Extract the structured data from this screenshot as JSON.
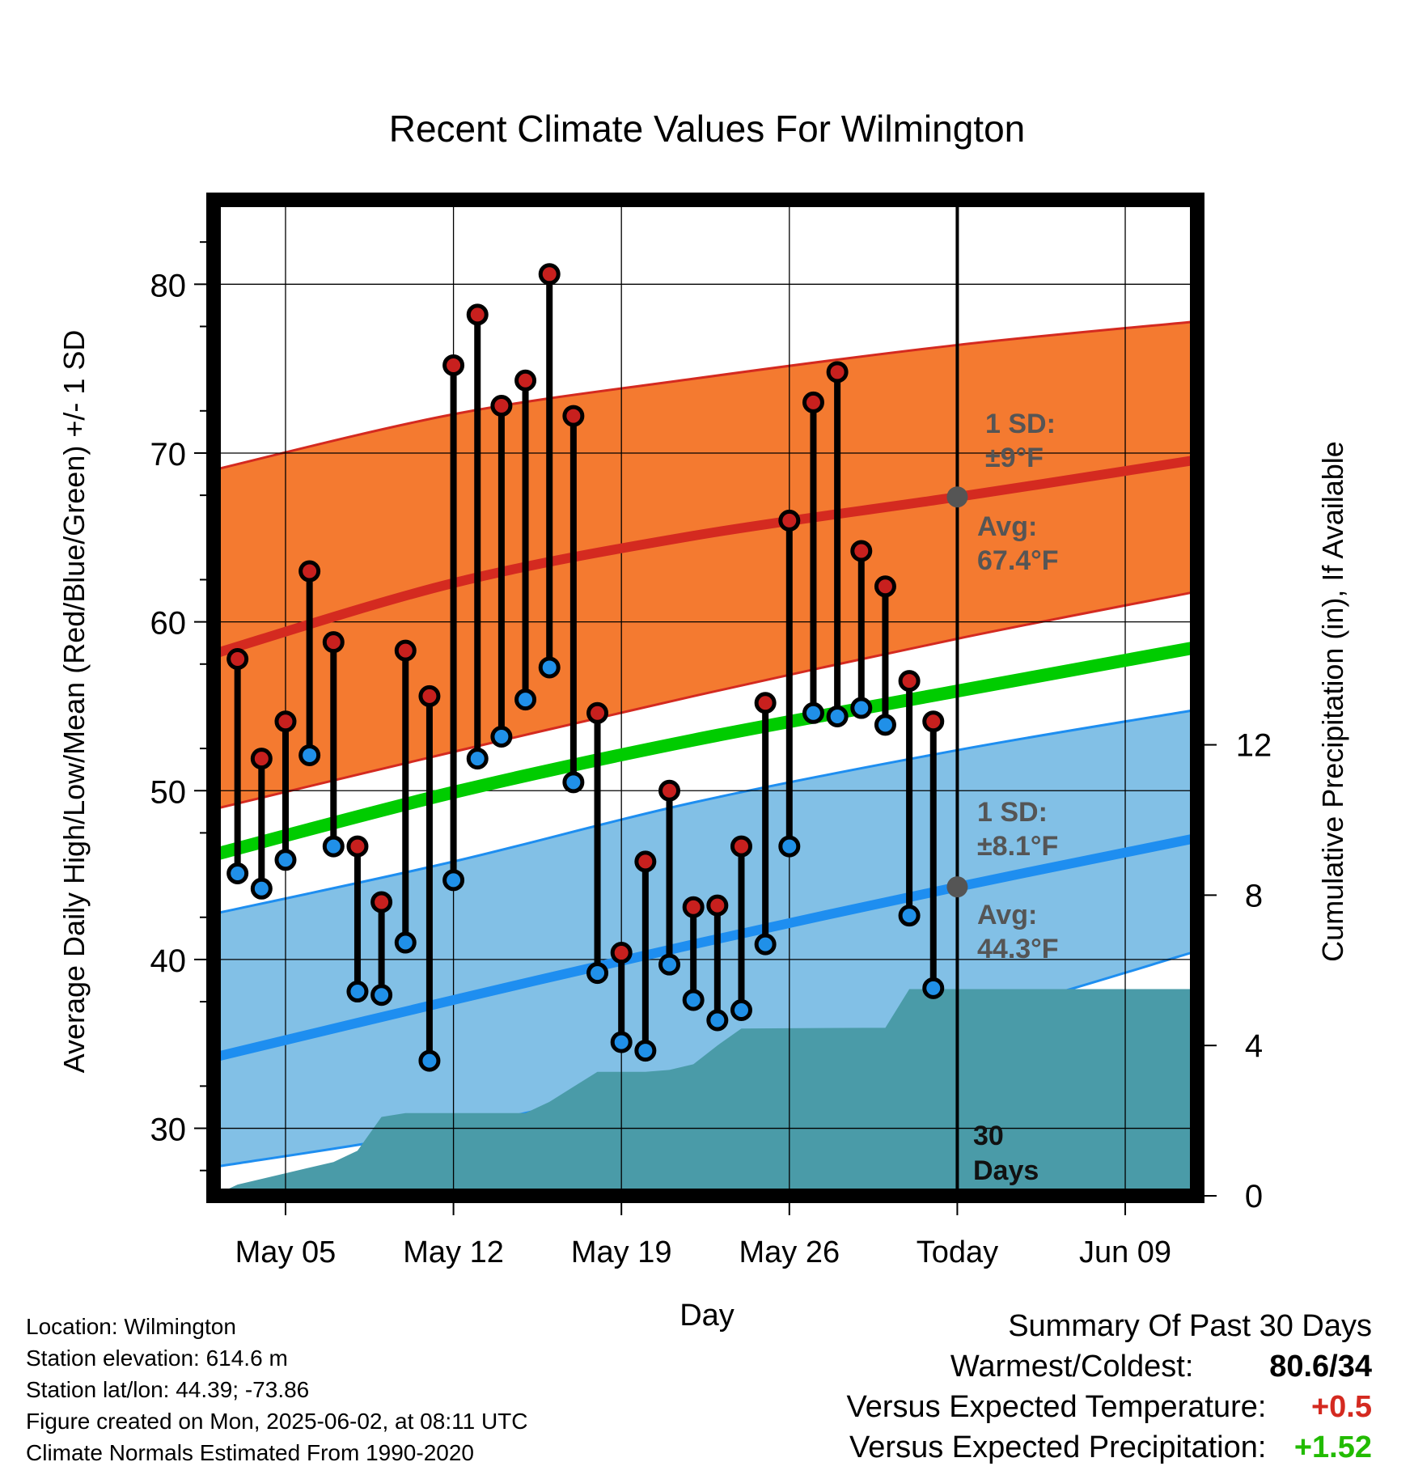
{
  "chart_data": {
    "type": "line",
    "title": "Recent Climate Values For Wilmington",
    "xlabel": "Day",
    "ylabel": "Average Daily High/Low/Mean (Red/Blue/Green) +/- 1 SD",
    "y2label": "Cumulative Precipitation (in), If Available",
    "ylim": [
      26,
      85
    ],
    "y2lim": [
      0,
      26.5
    ],
    "yticks": [
      30,
      40,
      50,
      60,
      70,
      80
    ],
    "y2ticks": [
      0,
      4,
      8,
      12
    ],
    "x_range_days": [
      "2025-05-02",
      "2025-06-12"
    ],
    "xticks": [
      {
        "date": "2025-05-05",
        "label": "May 05"
      },
      {
        "date": "2025-05-12",
        "label": "May 12"
      },
      {
        "date": "2025-05-19",
        "label": "May 19"
      },
      {
        "date": "2025-05-26",
        "label": "May 26"
      },
      {
        "date": "2025-06-02",
        "label": "Today"
      },
      {
        "date": "2025-06-09",
        "label": "Jun 09"
      }
    ],
    "today": "2025-06-02",
    "grid": true,
    "colors": {
      "high_band": "#f47a30",
      "high_avg": "#d42a20",
      "high_marker": "#c8201e",
      "low_band": "#82c0e6",
      "low_avg": "#1e8ef0",
      "low_marker": "#2090e8",
      "mean_avg": "#00cc00",
      "precip": "#4a9ba8",
      "stems": "#000000"
    },
    "normals": {
      "x": [
        "2025-05-02",
        "2025-05-12",
        "2025-05-22",
        "2025-06-02",
        "2025-06-12"
      ],
      "high_avg": [
        58.1,
        62.3,
        65.1,
        67.4,
        69.6
      ],
      "high_plus_sd": [
        69.0,
        72.3,
        74.4,
        76.4,
        77.8
      ],
      "high_minus_sd": [
        48.9,
        52.3,
        55.6,
        59.0,
        61.8
      ],
      "mean_avg": [
        46.2,
        49.9,
        53.0,
        55.9,
        58.5
      ],
      "low_avg": [
        34.2,
        37.6,
        40.9,
        44.3,
        47.2
      ],
      "low_plus_sd": [
        42.7,
        45.8,
        49.3,
        52.4,
        54.8
      ],
      "low_minus_sd": [
        27.7,
        30.0,
        33.2,
        36.4,
        40.5
      ]
    },
    "series": [
      {
        "name": "High",
        "x": [
          "2025-05-03",
          "2025-05-04",
          "2025-05-05",
          "2025-05-06",
          "2025-05-07",
          "2025-05-08",
          "2025-05-09",
          "2025-05-10",
          "2025-05-11",
          "2025-05-12",
          "2025-05-13",
          "2025-05-14",
          "2025-05-15",
          "2025-05-16",
          "2025-05-17",
          "2025-05-18",
          "2025-05-19",
          "2025-05-20",
          "2025-05-21",
          "2025-05-22",
          "2025-05-23",
          "2025-05-24",
          "2025-05-25",
          "2025-05-26",
          "2025-05-27",
          "2025-05-28",
          "2025-05-29",
          "2025-05-30",
          "2025-05-31",
          "2025-06-01"
        ],
        "values": [
          57.8,
          51.9,
          54.1,
          63.0,
          58.8,
          46.7,
          43.4,
          58.3,
          55.6,
          75.2,
          78.2,
          72.8,
          74.3,
          80.6,
          72.2,
          54.6,
          40.4,
          45.8,
          50.0,
          43.1,
          43.2,
          46.7,
          55.2,
          66.0,
          73.0,
          74.8,
          64.2,
          62.1,
          56.5,
          54.1
        ]
      },
      {
        "name": "Low",
        "x": [
          "2025-05-03",
          "2025-05-04",
          "2025-05-05",
          "2025-05-06",
          "2025-05-07",
          "2025-05-08",
          "2025-05-09",
          "2025-05-10",
          "2025-05-11",
          "2025-05-12",
          "2025-05-13",
          "2025-05-14",
          "2025-05-15",
          "2025-05-16",
          "2025-05-17",
          "2025-05-18",
          "2025-05-19",
          "2025-05-20",
          "2025-05-21",
          "2025-05-22",
          "2025-05-23",
          "2025-05-24",
          "2025-05-25",
          "2025-05-26",
          "2025-05-27",
          "2025-05-28",
          "2025-05-29",
          "2025-05-30",
          "2025-05-31",
          "2025-06-01"
        ],
        "values": [
          45.1,
          44.2,
          45.9,
          52.1,
          46.7,
          38.1,
          37.9,
          41.0,
          34.0,
          44.7,
          51.9,
          53.2,
          55.4,
          57.3,
          50.5,
          39.2,
          35.1,
          34.6,
          39.7,
          37.6,
          36.4,
          37.0,
          40.9,
          46.7,
          54.6,
          54.4,
          54.9,
          53.9,
          42.6,
          38.3
        ]
      },
      {
        "name": "Cumulative Precipitation",
        "axis": "y2",
        "x": [
          "2025-05-02",
          "2025-05-03",
          "2025-05-05",
          "2025-05-07",
          "2025-05-08",
          "2025-05-09",
          "2025-05-10",
          "2025-05-14",
          "2025-05-15",
          "2025-05-16",
          "2025-05-17",
          "2025-05-18",
          "2025-05-19",
          "2025-05-20",
          "2025-05-21",
          "2025-05-22",
          "2025-05-23",
          "2025-05-24",
          "2025-05-29",
          "2025-05-30",
          "2025-05-31",
          "2025-06-02",
          "2025-06-12"
        ],
        "values": [
          0.0,
          0.3,
          0.6,
          0.9,
          1.2,
          2.1,
          2.2,
          2.2,
          2.2,
          2.5,
          2.9,
          3.3,
          3.3,
          3.3,
          3.35,
          3.5,
          4.0,
          4.45,
          4.47,
          4.47,
          5.5,
          5.5,
          5.5
        ]
      }
    ],
    "annotations": {
      "high_sd_label": "1 SD:",
      "high_sd_value": "±9°F",
      "high_avg_label": "Avg:",
      "high_avg_value": "67.4°F",
      "low_sd_label": "1 SD:",
      "low_sd_value": "±8.1°F",
      "low_avg_label": "Avg:",
      "low_avg_value": "44.3°F",
      "window_line1": "30",
      "window_line2": "Days"
    }
  },
  "info": {
    "location": "Location: Wilmington",
    "elevation": "Station elevation: 614.6 m",
    "latlon": "Station lat/lon: 44.39; -73.86",
    "created": "Figure created on Mon, 2025-06-02, at 08:11 UTC",
    "normals": "Climate Normals Estimated From 1990-2020"
  },
  "summary": {
    "title": "Summary Of Past 30 Days",
    "warm_cold_label": "Warmest/Coldest:",
    "warm_cold_value": "80.6/34",
    "temp_label": "Versus Expected Temperature:",
    "temp_value": "+0.5",
    "temp_color": "#d42a20",
    "precip_label": "Versus Expected Precipitation:",
    "precip_value": "+1.52",
    "precip_color": "#22bb00"
  }
}
